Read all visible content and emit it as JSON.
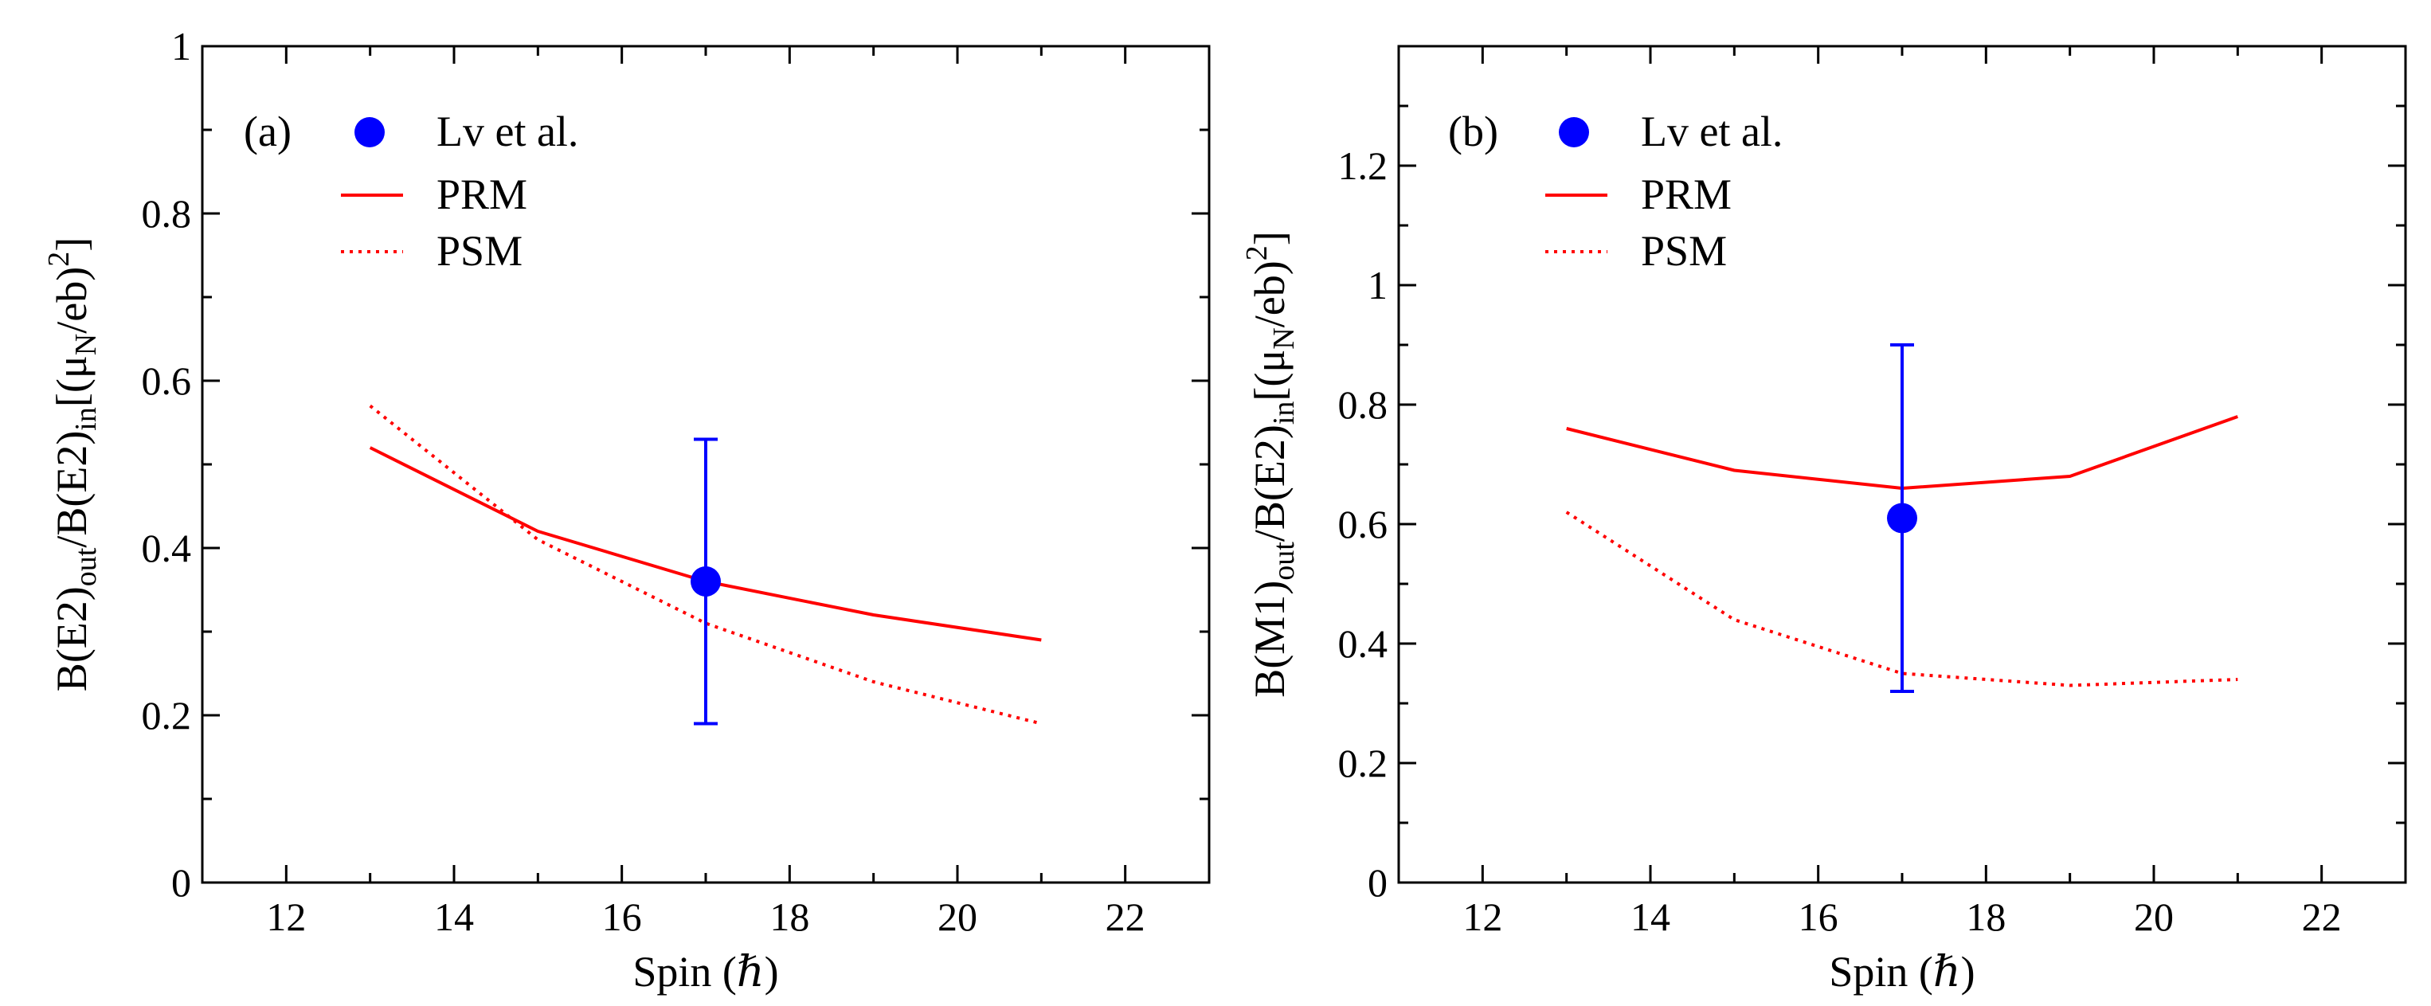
{
  "chart_data": [
    {
      "panel": "(a)",
      "type": "line",
      "xlabel": "Spin (ℏ)",
      "ylabel_parts": {
        "a": "B(E2)",
        "b": "out",
        "c": "/B(E2)",
        "d": "in",
        "e": "[(μ",
        "f": "N",
        "g": "/eb)",
        "h": "2",
        "i": "]"
      },
      "xlim": [
        11,
        23
      ],
      "ylim": [
        0,
        1
      ],
      "xticks": [
        12,
        14,
        16,
        18,
        20,
        22
      ],
      "yticks": [
        0,
        0.2,
        0.4,
        0.6,
        0.8,
        1
      ],
      "ytick_labels": [
        "0",
        "0.2",
        "0.4",
        "0.6",
        "0.8",
        "1"
      ],
      "series": [
        {
          "name": "PRM",
          "style": "solid",
          "color": "#ff0000",
          "x": [
            13,
            15,
            17,
            19,
            21
          ],
          "y": [
            0.52,
            0.42,
            0.36,
            0.32,
            0.29
          ]
        },
        {
          "name": "PSM",
          "style": "dotted",
          "color": "#ff0000",
          "x": [
            13,
            15,
            17,
            19,
            21
          ],
          "y": [
            0.57,
            0.41,
            0.31,
            0.24,
            0.19
          ]
        }
      ],
      "experiment": {
        "name": "Lv et al.",
        "color": "#0000ff",
        "x": 17,
        "y": 0.36,
        "err_low": 0.19,
        "err_high": 0.53
      },
      "legend": [
        "Lv et al.",
        "PRM",
        "PSM"
      ]
    },
    {
      "panel": "(b)",
      "type": "line",
      "xlabel": "Spin (ℏ)",
      "ylabel_parts": {
        "a": "B(M1)",
        "b": "out",
        "c": "/B(E2)",
        "d": "in",
        "e": "[(μ",
        "f": "N",
        "g": "/eb)",
        "h": "2",
        "i": "]"
      },
      "xlim": [
        11,
        23
      ],
      "ylim": [
        0,
        1.4
      ],
      "xticks": [
        12,
        14,
        16,
        18,
        20,
        22
      ],
      "yticks": [
        0,
        0.2,
        0.4,
        0.6,
        0.8,
        1,
        1.2
      ],
      "ytick_labels": [
        "0",
        "0.2",
        "0.4",
        "0.6",
        "0.8",
        "1",
        "1.2"
      ],
      "series": [
        {
          "name": "PRM",
          "style": "solid",
          "color": "#ff0000",
          "x": [
            13,
            15,
            17,
            19,
            21
          ],
          "y": [
            0.76,
            0.69,
            0.66,
            0.68,
            0.78
          ]
        },
        {
          "name": "PSM",
          "style": "dotted",
          "color": "#ff0000",
          "x": [
            13,
            15,
            17,
            19,
            21
          ],
          "y": [
            0.62,
            0.44,
            0.35,
            0.33,
            0.34
          ]
        }
      ],
      "experiment": {
        "name": "Lv et al.",
        "color": "#0000ff",
        "x": 17,
        "y": 0.61,
        "err_low": 0.32,
        "err_high": 0.9
      },
      "legend": [
        "Lv et al.",
        "PRM",
        "PSM"
      ]
    }
  ]
}
